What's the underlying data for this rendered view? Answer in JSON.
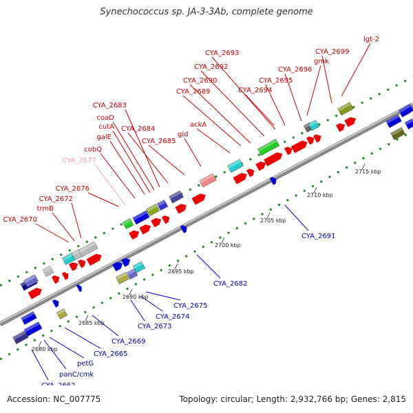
{
  "title": "Synechococcus sp. JA-3-3Ab, complete genome",
  "accession_text": "Accession: NC_007775",
  "summary_text": "Topology: circular; Length: 2,932,766 bp; Genes: 2,815",
  "colors": {
    "forward_label": "#cc0000",
    "reverse_label": "#0000cc",
    "rna_label": "#f0a0c0",
    "backbone": "#999999",
    "tick_dots": "#228822"
  },
  "scale_labels": [
    "2680 kbp",
    "2685 kbp",
    "2690 kbp",
    "2695 kbp",
    "2700 kbp",
    "2705 kbp",
    "2710 kbp",
    "2715 kbp"
  ],
  "forward_labels": [
    "CYA_2670",
    "trmB",
    "CYA_2672",
    "CYA_2676",
    "CYA_2677",
    "cobQ",
    "galE",
    "cutA",
    "coaD",
    "CYA_2683",
    "CYA_2684",
    "CYA_2685",
    "gid",
    "ackA",
    "CYA_2689",
    "CYA_2690",
    "CYA_2692",
    "CYA_2693",
    "CYA_2694",
    "CYA_2695",
    "CYA_2696",
    "gmk",
    "CYA_2699",
    "lgt-2"
  ],
  "reverse_labels": [
    "CYA_2662",
    "panC/cmk",
    "petG",
    "CYA_2665",
    "CYA_2669",
    "CYA_2673",
    "CYA_2674",
    "CYA_2675",
    "CYA_2682",
    "CYA_2691"
  ]
}
